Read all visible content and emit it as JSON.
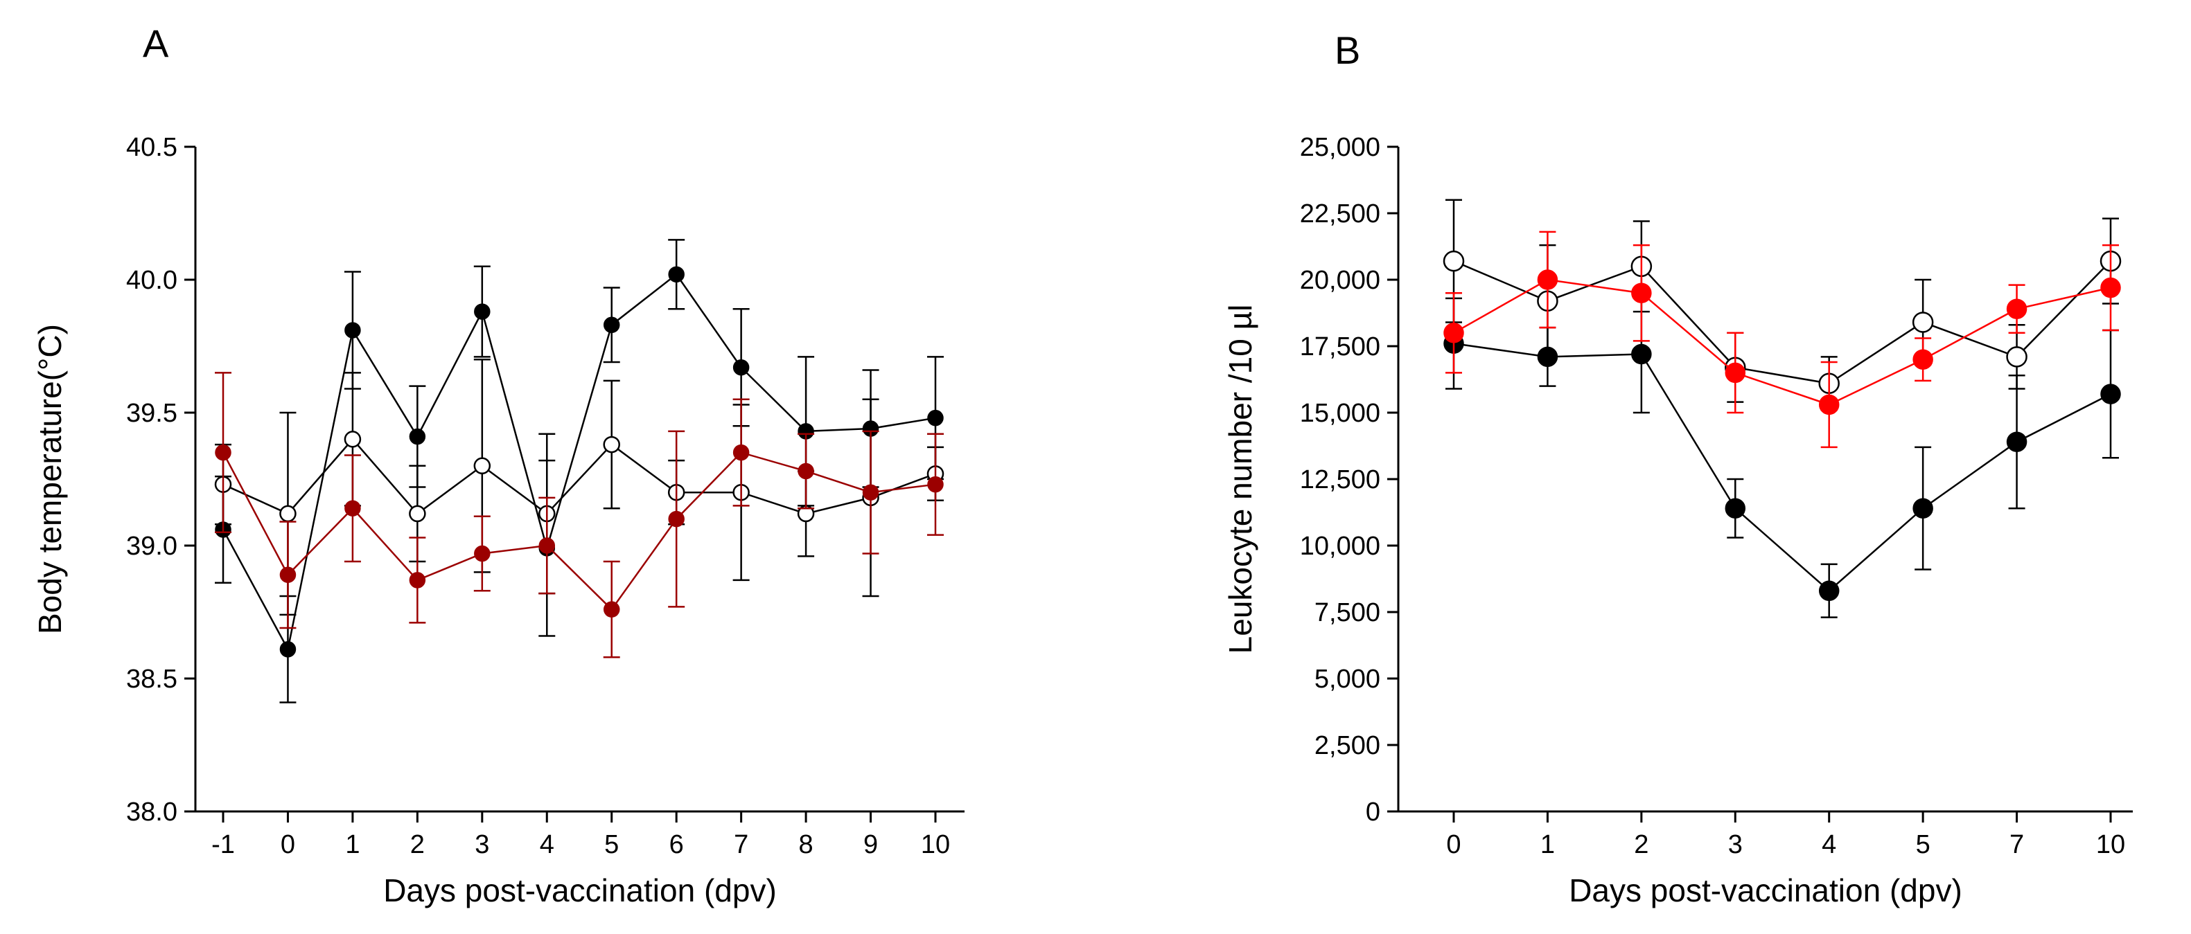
{
  "chart_data": [
    {
      "type": "line",
      "panel_label": "A",
      "xlabel": "Days post-vaccination (dpv)",
      "ylabel": "Body temperature(°C)",
      "categories": [
        "-1",
        "0",
        "1",
        "2",
        "3",
        "4",
        "5",
        "6",
        "7",
        "8",
        "9",
        "10"
      ],
      "yticks": [
        "38.0",
        "38.5",
        "39.0",
        "39.5",
        "40.0",
        "40.5"
      ],
      "ylim": [
        38.0,
        40.5
      ],
      "grid": false,
      "series": [
        {
          "name": "filled-black",
          "color": "#000000",
          "marker": "filled",
          "values": [
            39.06,
            38.61,
            39.81,
            39.41,
            39.88,
            38.99,
            39.83,
            40.02,
            39.67,
            39.43,
            39.44,
            39.48
          ],
          "err": [
            0.2,
            0.2,
            0.22,
            0.19,
            0.17,
            0.33,
            0.14,
            0.13,
            0.22,
            0.28,
            0.22,
            0.23
          ]
        },
        {
          "name": "open-circle",
          "color": "#000000",
          "marker": "open",
          "values": [
            39.23,
            39.12,
            39.4,
            39.12,
            39.3,
            39.12,
            39.38,
            39.2,
            39.2,
            39.12,
            39.18,
            39.27
          ],
          "err": [
            0.15,
            0.38,
            0.25,
            0.18,
            0.4,
            0.3,
            0.24,
            0.12,
            0.33,
            0.16,
            0.37,
            0.1
          ]
        },
        {
          "name": "filled-dark-red",
          "color": "#9b0000",
          "marker": "filled",
          "values": [
            39.35,
            38.89,
            39.14,
            38.87,
            38.97,
            39.0,
            38.76,
            39.1,
            39.35,
            39.28,
            39.2,
            39.23
          ],
          "err": [
            0.3,
            0.2,
            0.2,
            0.16,
            0.14,
            0.18,
            0.18,
            0.33,
            0.2,
            0.14,
            0.23,
            0.19
          ]
        }
      ]
    },
    {
      "type": "line",
      "panel_label": "B",
      "xlabel": "Days post-vaccination (dpv)",
      "ylabel": "Leukocyte number /10 µl",
      "categories": [
        "0",
        "1",
        "2",
        "3",
        "4",
        "5",
        "7",
        "10"
      ],
      "yticks": [
        "0",
        "2,500",
        "5,000",
        "7,500",
        "10,000",
        "12,500",
        "15,000",
        "17,500",
        "20,000",
        "22,500",
        "25,000"
      ],
      "ylim": [
        0,
        25000
      ],
      "grid": false,
      "series": [
        {
          "name": "filled-black",
          "color": "#000000",
          "marker": "filled",
          "values": [
            17600,
            17100,
            17200,
            11400,
            8300,
            11400,
            13900,
            15700
          ],
          "err": [
            1700,
            1100,
            2200,
            1100,
            1000,
            2300,
            2500,
            2400
          ]
        },
        {
          "name": "open-circle",
          "color": "#000000",
          "marker": "open",
          "values": [
            20700,
            19200,
            20500,
            16700,
            16100,
            18400,
            17100,
            20700
          ],
          "err": [
            2300,
            2100,
            1700,
            1300,
            1000,
            1600,
            1200,
            1600
          ]
        },
        {
          "name": "filled-red",
          "color": "#ff0000",
          "marker": "filled",
          "values": [
            18000,
            20000,
            19500,
            16500,
            15300,
            17000,
            18900,
            19700
          ],
          "err": [
            1500,
            1800,
            1800,
            1500,
            1600,
            800,
            900,
            1600
          ]
        }
      ]
    }
  ]
}
